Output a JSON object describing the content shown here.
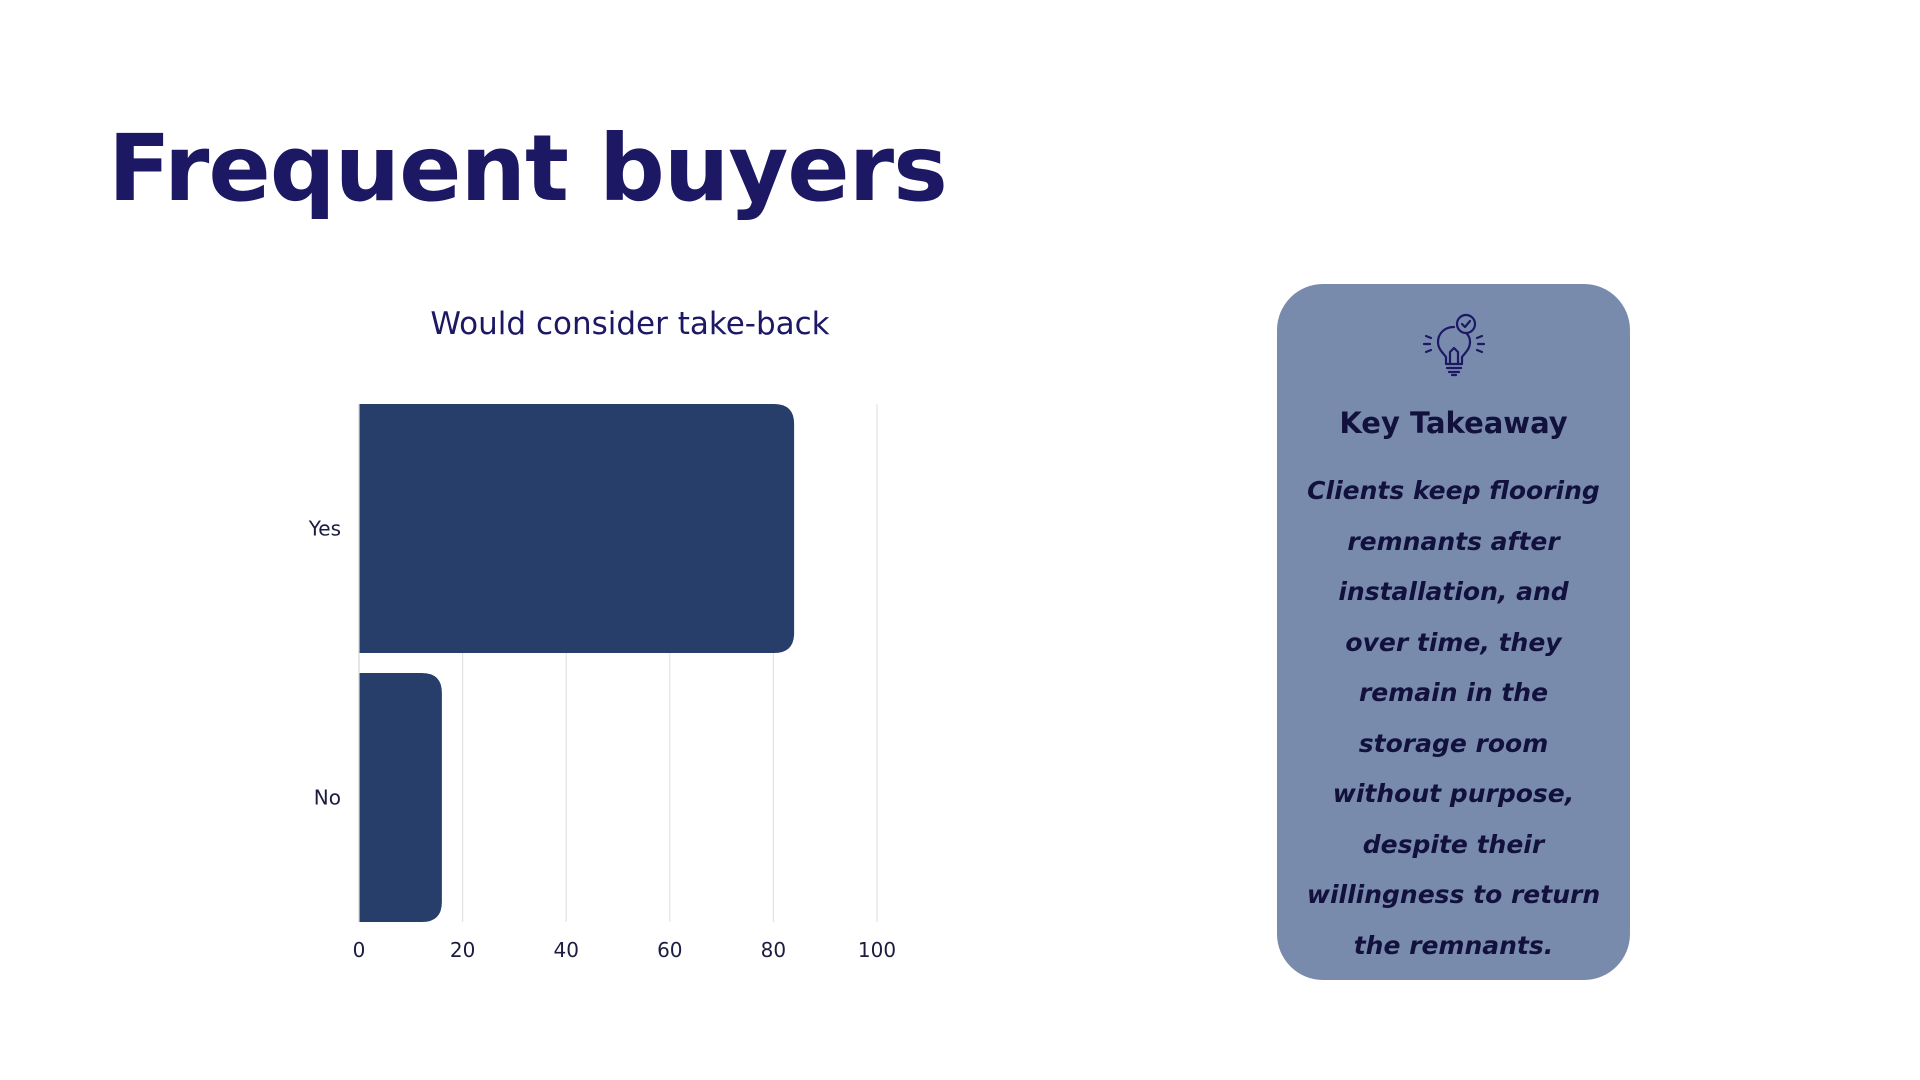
{
  "slide": {
    "title": "Frequent buyers"
  },
  "chart_data": {
    "type": "bar",
    "orientation": "horizontal",
    "title": "Would consider take-back",
    "categories": [
      "Yes",
      "No"
    ],
    "values": [
      84,
      16
    ],
    "xlim": [
      0,
      100
    ],
    "x_ticks": [
      "0",
      "20",
      "40",
      "60",
      "80",
      "100"
    ],
    "xlabel": "",
    "ylabel": "",
    "grid": "vertical gridlines",
    "legend": "none",
    "bar_color": "#283e6a"
  },
  "takeaway": {
    "icon": "lightbulb-check-icon",
    "heading": "Key Takeaway",
    "text": "Clients keep flooring remnants after installation, and over time, they remain in the storage room without purpose, despite their willingness to return the remnants."
  },
  "colors": {
    "title": "#1c1864",
    "card_background": "#788bad",
    "card_text": "#12103d"
  }
}
